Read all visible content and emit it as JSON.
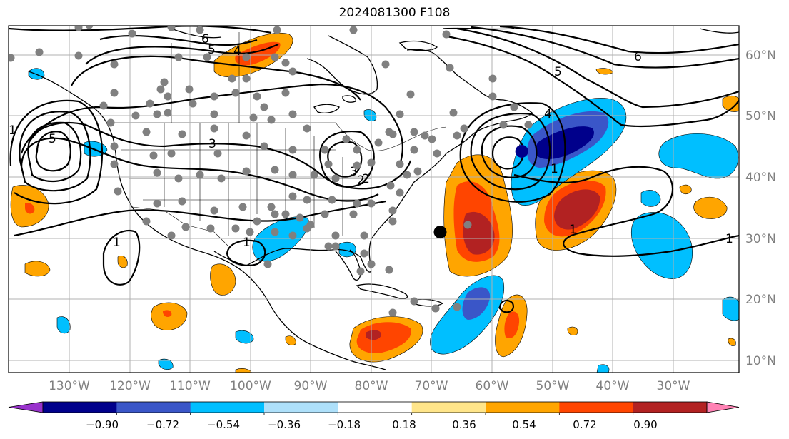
{
  "title": "2024081300 F108",
  "map": {
    "lon_range": [
      -137,
      -16
    ],
    "lat_range": [
      7,
      65
    ],
    "lon_labels": [
      "130°W",
      "120°W",
      "110°W",
      "100°W",
      "90°W",
      "80°W",
      "70°W",
      "60°W",
      "50°W",
      "40°W",
      "30°W"
    ],
    "lat_labels": [
      "60°N",
      "50°N",
      "40°N",
      "30°N",
      "20°N",
      "10°N"
    ],
    "label_color": "#808080",
    "contour_labels": [
      "6",
      "5",
      "4",
      "3",
      "2",
      "1",
      "5",
      "6",
      "5",
      "4",
      "3",
      "2",
      "1",
      "1",
      "1",
      "1",
      "1"
    ]
  },
  "colorbar": {
    "ticks": [
      "−0.90",
      "−0.72",
      "−0.54",
      "−0.36",
      "−0.18",
      "0.18",
      "0.36",
      "0.54",
      "0.72",
      "0.90"
    ],
    "colors": [
      "#9932cc",
      "#00008b",
      "#3a56c8",
      "#00bfff",
      "#aee0fa",
      "#ffffff",
      "#ffe58a",
      "#ffa500",
      "#ff4500",
      "#b22222",
      "#ff82b4"
    ]
  },
  "markers": {
    "gray_color": "#808080",
    "black_lonlat": [
      [
        -65.5,
        30.5
      ]
    ],
    "navy_lonlat": [
      [
        -52,
        44
      ]
    ],
    "black_color": "#000000",
    "navy_color": "#00008b"
  }
}
